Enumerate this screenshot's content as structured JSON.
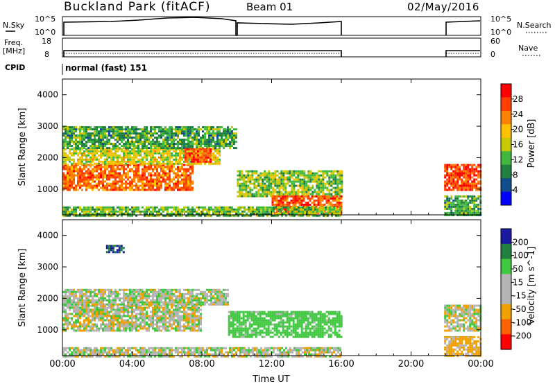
{
  "header": {
    "station": "Buckland Park (fitACF)",
    "beam": "Beam 01",
    "date": "02/May/2016"
  },
  "aux_panels": {
    "nsky_label": "N.Sky",
    "nsky_ticks": [
      "10^5",
      "10^0"
    ],
    "nsearch_label": "N.Search",
    "nsearch_ticks": [
      "10^5",
      "10^0"
    ],
    "freq_label_1": "Freq.",
    "freq_label_2": "[MHz]",
    "freq_ticks": [
      "18",
      "8"
    ],
    "nave_label": "Nave",
    "nave_ticks": [
      "60",
      "0"
    ],
    "cpid_label": "CPID",
    "cpid_value": "normal (fast) 151"
  },
  "chart_data": [
    {
      "type": "heatmap",
      "name": "power",
      "xlabel": "Time UT",
      "ylabel": "Slant Range [km]",
      "xlim": [
        0,
        24
      ],
      "ylim": [
        180,
        4500
      ],
      "x_ticks": [
        "00:00",
        "04:00",
        "08:00",
        "12:00",
        "16:00",
        "20:00",
        "00:00"
      ],
      "y_ticks": [
        "4000",
        "3000",
        "2000",
        "1000"
      ],
      "colorbar_label": "Power [dB]",
      "colorbar_ticks": [
        "28",
        "24",
        "20",
        "16",
        "12",
        "8",
        "4"
      ],
      "colorbar_colors": [
        "#ff0000",
        "#ff4000",
        "#ff8000",
        "#ffc000",
        "#c8c800",
        "#40b840",
        "#208040",
        "#104e8b",
        "#0000ff"
      ],
      "coverage_gap_hours": [
        16.0,
        21.9
      ],
      "regions": [
        {
          "t0": 0.0,
          "t1": 7.5,
          "r0": 1000,
          "r1": 1800,
          "level": 24
        },
        {
          "t0": 0.0,
          "t1": 9.0,
          "r0": 1800,
          "r1": 2300,
          "level": 16
        },
        {
          "t0": 0.0,
          "t1": 10.0,
          "r0": 2300,
          "r1": 3000,
          "level": 10
        },
        {
          "t0": 7.0,
          "t1": 8.5,
          "r0": 1900,
          "r1": 2300,
          "level": 26
        },
        {
          "t0": 10.0,
          "t1": 16.0,
          "r0": 800,
          "r1": 1600,
          "level": 13
        },
        {
          "t0": 12.0,
          "t1": 16.0,
          "r0": 250,
          "r1": 800,
          "level": 25
        },
        {
          "t0": 0.0,
          "t1": 16.0,
          "r0": 180,
          "r1": 450,
          "level": 12
        },
        {
          "t0": 21.9,
          "t1": 24.0,
          "r0": 1000,
          "r1": 1800,
          "level": 26
        },
        {
          "t0": 21.9,
          "t1": 24.0,
          "r0": 180,
          "r1": 800,
          "level": 10
        }
      ]
    },
    {
      "type": "heatmap",
      "name": "velocity",
      "xlabel": "Time UT",
      "ylabel": "Slant Range [km]",
      "xlim": [
        0,
        24
      ],
      "ylim": [
        180,
        4500
      ],
      "x_ticks": [
        "00:00",
        "04:00",
        "08:00",
        "12:00",
        "16:00",
        "20:00",
        "00:00"
      ],
      "y_ticks": [
        "4000",
        "3000",
        "2000",
        "1000"
      ],
      "colorbar_label": "Velocity [m s^-1]",
      "colorbar_ticks": [
        "200",
        "100",
        "50",
        "15",
        "-15",
        "-50",
        "-100",
        "-200"
      ],
      "colorbar_colors": [
        "#1a1aa0",
        "#208040",
        "#40c840",
        "#b4b4b4",
        "#b4b4b4",
        "#f0a000",
        "#ff6000",
        "#ff0000"
      ],
      "coverage_gap_hours": [
        16.0,
        21.9
      ],
      "regions": [
        {
          "t0": 0.0,
          "t1": 8.0,
          "r0": 1000,
          "r1": 1800,
          "level": 0
        },
        {
          "t0": 0.0,
          "t1": 9.5,
          "r0": 1800,
          "r1": 2300,
          "level": 5
        },
        {
          "t0": 9.5,
          "t1": 16.0,
          "r0": 800,
          "r1": 1600,
          "level": 40
        },
        {
          "t0": 2.5,
          "t1": 3.5,
          "r0": 3500,
          "r1": 3700,
          "level": 150
        },
        {
          "t0": 0.0,
          "t1": 16.0,
          "r0": 180,
          "r1": 450,
          "level": 0
        },
        {
          "t0": 21.9,
          "t1": 24.0,
          "r0": 1000,
          "r1": 1800,
          "level": 0
        },
        {
          "t0": 21.9,
          "t1": 24.0,
          "r0": 180,
          "r1": 800,
          "level": -30
        }
      ]
    }
  ]
}
